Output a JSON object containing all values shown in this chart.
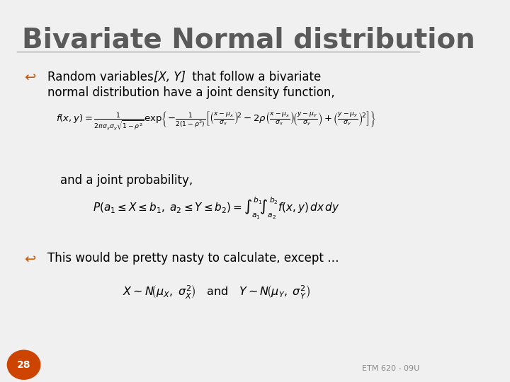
{
  "background_color": "#f0f0f0",
  "title": "Bivariate Normal distribution",
  "title_color": "#5a5a5a",
  "title_fontsize": 28,
  "bullet_color": "#cc5500",
  "text_color": "#000000",
  "slide_number": "28",
  "slide_number_bg": "#cc4400",
  "slide_number_color": "#ffffff",
  "footer": "ETM 620 - 09U",
  "bullet1_line1": "Random variables ",
  "bullet1_italic": "[X, Y]",
  "bullet1_line1b": " that follow a bivariate",
  "bullet1_line2": "normal distribution have a joint density function,",
  "formula1": "f(x,y) = \\frac{1}{2\\pi\\sigma_x\\sigma_y\\sqrt{1-\\rho^2}} \\exp\\!\\left\\{-\\frac{1}{2(1-\\rho^2)}\\left[\\left(\\frac{x-\\mu_x}{\\sigma_x}\\right)^{\\!2} -2\\rho\\left(\\frac{x-\\mu_x}{\\sigma_x}\\right)\\!\\left(\\frac{y-\\mu_y}{\\sigma_y}\\right)+\\left(\\frac{y-\\mu_y}{\\sigma_y}\\right)^{\\!2}\\right]\\right\\}",
  "text_joint": "and a joint probability,",
  "formula2": "P(a_1 \\le X \\le b_1,\\, a_2 \\le Y \\le b_2) = \\int_{a_1}^{b_1}\\!\\int_{a_2}^{b_2} f(x,y)\\,dx\\,dy",
  "bullet2_text": "This would be pretty nasty to calculate, except …",
  "formula3_part1": "X \\sim N\\left(\\mu_X,\\, \\sigma^2_X\\right)",
  "formula3_and": "   and   ",
  "formula3_part2": "Y \\sim N\\left(\\mu_Y,\\, \\sigma^2_Y\\right)"
}
